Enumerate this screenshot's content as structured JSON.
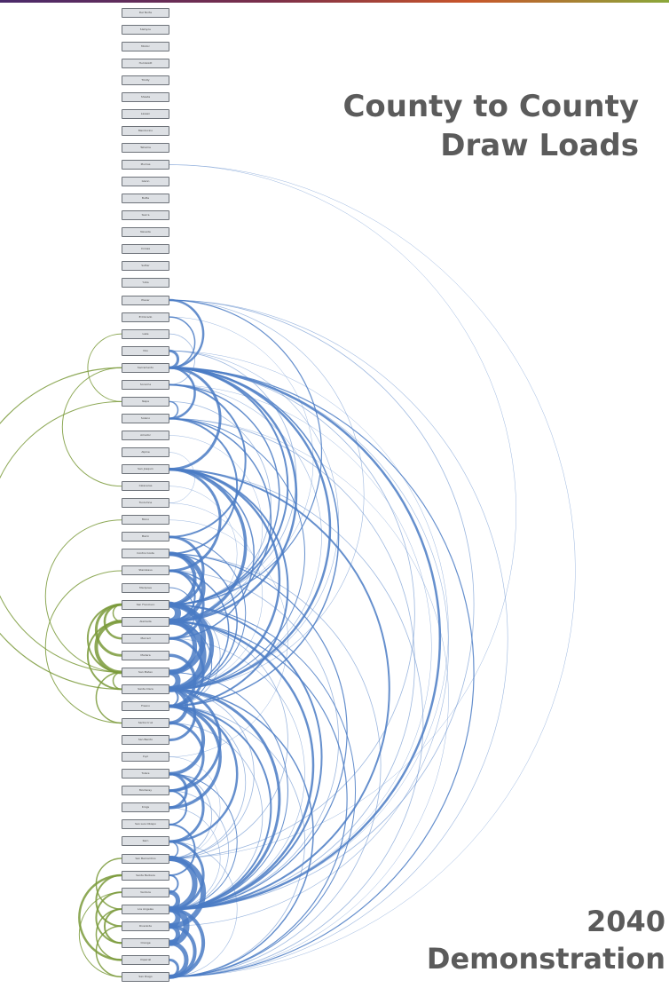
{
  "header": {
    "title_line1": "County to County",
    "title_line2": "Draw Loads"
  },
  "footer": {
    "subtitle_line1": "2040",
    "subtitle_line2": "Demonstration"
  },
  "colors": {
    "intra_region": "#4a7bc4",
    "cross_region": "#7a9a3a",
    "node_fill": "#dde0e4",
    "node_border": "#6d7279",
    "text": "#5b5b5b"
  },
  "counties": [
    "Del Norte",
    "Siskiyou",
    "Modoc",
    "Humboldt",
    "Trinity",
    "Shasta",
    "Lassen",
    "Mendocino",
    "Tehama",
    "Plumas",
    "Glenn",
    "Butte",
    "Sierra",
    "Nevada",
    "Colusa",
    "Sutter",
    "Yuba",
    "Placer",
    "El Dorado",
    "Lake",
    "Yolo",
    "Sacramento",
    "Sonoma",
    "Napa",
    "Solano",
    "Amador",
    "Alpine",
    "San Joaquin",
    "Calaveras",
    "Tuolumne",
    "Mono",
    "Marin",
    "Contra Costa",
    "Stanislaus",
    "Mariposa",
    "San Francisco",
    "Alameda",
    "Merced",
    "Madera",
    "San Mateo",
    "Santa Clara",
    "Fresno",
    "Santa Cruz",
    "San Benito",
    "Inyo",
    "Tulare",
    "Monterey",
    "Kings",
    "San Luis Obispo",
    "Kern",
    "San Bernardino",
    "Santa Barbara",
    "Ventura",
    "Los Angeles",
    "Riverside",
    "Orange",
    "Imperial",
    "San Diego"
  ],
  "links": [
    {
      "from": 9,
      "to": 57,
      "weight": 0.5
    },
    {
      "from": 9,
      "to": 50,
      "weight": 0.5
    },
    {
      "from": 17,
      "to": 21,
      "weight": 2.5
    },
    {
      "from": 17,
      "to": 35,
      "weight": 1.2
    },
    {
      "from": 17,
      "to": 53,
      "weight": 0.8
    },
    {
      "from": 17,
      "to": 57,
      "weight": 0.6
    },
    {
      "from": 18,
      "to": 21,
      "weight": 1.5
    },
    {
      "from": 20,
      "to": 21,
      "weight": 3
    },
    {
      "from": 20,
      "to": 35,
      "weight": 0.8
    },
    {
      "from": 21,
      "to": 24,
      "weight": 2.5
    },
    {
      "from": 21,
      "to": 27,
      "weight": 3
    },
    {
      "from": 21,
      "to": 35,
      "weight": 2
    },
    {
      "from": 21,
      "to": 36,
      "weight": 2.5
    },
    {
      "from": 21,
      "to": 40,
      "weight": 2.5
    },
    {
      "from": 21,
      "to": 41,
      "weight": 1.5
    },
    {
      "from": 21,
      "to": 53,
      "weight": 2.5
    },
    {
      "from": 21,
      "to": 57,
      "weight": 1.2
    },
    {
      "from": 22,
      "to": 31,
      "weight": 2
    },
    {
      "from": 22,
      "to": 35,
      "weight": 1.5
    },
    {
      "from": 24,
      "to": 32,
      "weight": 2
    },
    {
      "from": 24,
      "to": 36,
      "weight": 1.5
    },
    {
      "from": 27,
      "to": 33,
      "weight": 3
    },
    {
      "from": 27,
      "to": 36,
      "weight": 3.5
    },
    {
      "from": 27,
      "to": 40,
      "weight": 2.5
    },
    {
      "from": 27,
      "to": 53,
      "weight": 2
    },
    {
      "from": 27,
      "to": 41,
      "weight": 2
    },
    {
      "from": 31,
      "to": 35,
      "weight": 3
    },
    {
      "from": 32,
      "to": 36,
      "weight": 5
    },
    {
      "from": 32,
      "to": 35,
      "weight": 4
    },
    {
      "from": 33,
      "to": 37,
      "weight": 3
    },
    {
      "from": 33,
      "to": 36,
      "weight": 2
    },
    {
      "from": 33,
      "to": 40,
      "weight": 1.5
    },
    {
      "from": 35,
      "to": 36,
      "weight": 7
    },
    {
      "from": 35,
      "to": 39,
      "weight": 6
    },
    {
      "from": 35,
      "to": 40,
      "weight": 5
    },
    {
      "from": 35,
      "to": 53,
      "weight": 2
    },
    {
      "from": 36,
      "to": 40,
      "weight": 7
    },
    {
      "from": 36,
      "to": 39,
      "weight": 5
    },
    {
      "from": 36,
      "to": 53,
      "weight": 2.5
    },
    {
      "from": 36,
      "to": 57,
      "weight": 1.2
    },
    {
      "from": 37,
      "to": 41,
      "weight": 3
    },
    {
      "from": 38,
      "to": 41,
      "weight": 3.5
    },
    {
      "from": 39,
      "to": 40,
      "weight": 6
    },
    {
      "from": 40,
      "to": 42,
      "weight": 4
    },
    {
      "from": 40,
      "to": 43,
      "weight": 3
    },
    {
      "from": 40,
      "to": 46,
      "weight": 3
    },
    {
      "from": 40,
      "to": 41,
      "weight": 2
    },
    {
      "from": 40,
      "to": 53,
      "weight": 3
    },
    {
      "from": 40,
      "to": 57,
      "weight": 1.5
    },
    {
      "from": 41,
      "to": 45,
      "weight": 4
    },
    {
      "from": 41,
      "to": 47,
      "weight": 3.5
    },
    {
      "from": 41,
      "to": 49,
      "weight": 2.5
    },
    {
      "from": 41,
      "to": 53,
      "weight": 2
    },
    {
      "from": 42,
      "to": 46,
      "weight": 3
    },
    {
      "from": 45,
      "to": 47,
      "weight": 3
    },
    {
      "from": 45,
      "to": 49,
      "weight": 3
    },
    {
      "from": 46,
      "to": 48,
      "weight": 2
    },
    {
      "from": 48,
      "to": 51,
      "weight": 2
    },
    {
      "from": 49,
      "to": 53,
      "weight": 3
    },
    {
      "from": 50,
      "to": 53,
      "weight": 6
    },
    {
      "from": 50,
      "to": 54,
      "weight": 6
    },
    {
      "from": 51,
      "to": 52,
      "weight": 2
    },
    {
      "from": 52,
      "to": 53,
      "weight": 5
    },
    {
      "from": 53,
      "to": 55,
      "weight": 7
    },
    {
      "from": 53,
      "to": 54,
      "weight": 6
    },
    {
      "from": 53,
      "to": 57,
      "weight": 4
    },
    {
      "from": 54,
      "to": 55,
      "weight": 5
    },
    {
      "from": 54,
      "to": 57,
      "weight": 4
    },
    {
      "from": 55,
      "to": 57,
      "weight": 5
    },
    {
      "from": 56,
      "to": 57,
      "weight": 3
    },
    {
      "from": 17,
      "to": 40,
      "weight": 0.6
    },
    {
      "from": 20,
      "to": 53,
      "weight": 0.5
    },
    {
      "from": 22,
      "to": 53,
      "weight": 0.5
    },
    {
      "from": 24,
      "to": 53,
      "weight": 0.8
    },
    {
      "from": 24,
      "to": 57,
      "weight": 0.5
    },
    {
      "from": 27,
      "to": 57,
      "weight": 0.8
    },
    {
      "from": 32,
      "to": 53,
      "weight": 1.2
    },
    {
      "from": 32,
      "to": 57,
      "weight": 0.8
    },
    {
      "from": 33,
      "to": 53,
      "weight": 0.8
    },
    {
      "from": 35,
      "to": 57,
      "weight": 1
    },
    {
      "from": 37,
      "to": 53,
      "weight": 0.6
    },
    {
      "from": 39,
      "to": 53,
      "weight": 1
    },
    {
      "from": 41,
      "to": 57,
      "weight": 0.8
    },
    {
      "from": 42,
      "to": 53,
      "weight": 0.8
    },
    {
      "from": 45,
      "to": 53,
      "weight": 1
    },
    {
      "from": 46,
      "to": 53,
      "weight": 0.8
    },
    {
      "from": 47,
      "to": 53,
      "weight": 0.6
    },
    {
      "from": 18,
      "to": 35,
      "weight": 0.5
    },
    {
      "from": 23,
      "to": 35,
      "weight": 0.8
    },
    {
      "from": 25,
      "to": 36,
      "weight": 0.5
    },
    {
      "from": 28,
      "to": 36,
      "weight": 0.5
    },
    {
      "from": 29,
      "to": 40,
      "weight": 0.5
    },
    {
      "from": 19,
      "to": 22,
      "weight": 0.8
    },
    {
      "from": 23,
      "to": 24,
      "weight": 1.5
    },
    {
      "from": 34,
      "to": 37,
      "weight": 1
    },
    {
      "from": 44,
      "to": 50,
      "weight": 0.5
    },
    {
      "from": 30,
      "to": 44,
      "weight": 0.5
    },
    {
      "from": 26,
      "to": 29,
      "weight": 0.5
    },
    {
      "from": 20,
      "to": 40,
      "weight": 0.6
    },
    {
      "from": 22,
      "to": 40,
      "weight": 0.6
    },
    {
      "from": 32,
      "to": 40,
      "weight": 1.5
    },
    {
      "from": 31,
      "to": 40,
      "weight": 1
    },
    {
      "from": 24,
      "to": 40,
      "weight": 1
    },
    {
      "from": 21,
      "to": 50,
      "weight": 0.8
    },
    {
      "from": 21,
      "to": 54,
      "weight": 0.6
    },
    {
      "from": 36,
      "to": 50,
      "weight": 0.8
    },
    {
      "from": 40,
      "to": 50,
      "weight": 0.8
    },
    {
      "from": 41,
      "to": 50,
      "weight": 0.8
    },
    {
      "from": 45,
      "to": 50,
      "weight": 0.8
    },
    {
      "from": 49,
      "to": 50,
      "weight": 1.5
    },
    {
      "from": 49,
      "to": 57,
      "weight": 0.6
    },
    {
      "from": 35,
      "to": 41,
      "weight": 0.8
    },
    {
      "from": 36,
      "to": 41,
      "weight": 1
    },
    {
      "from": 27,
      "to": 37,
      "weight": 1.5
    }
  ],
  "cross_links": [
    {
      "from": 19,
      "to": 23,
      "weight": 1
    },
    {
      "from": 21,
      "to": 28,
      "weight": 1
    },
    {
      "from": 23,
      "to": 39,
      "weight": 1
    },
    {
      "from": 21,
      "to": 40,
      "weight": 1.2
    },
    {
      "from": 30,
      "to": 39,
      "weight": 1
    },
    {
      "from": 35,
      "to": 36,
      "weight": 1.5
    },
    {
      "from": 35,
      "to": 37,
      "weight": 2.5
    },
    {
      "from": 35,
      "to": 38,
      "weight": 3
    },
    {
      "from": 35,
      "to": 39,
      "weight": 2
    },
    {
      "from": 36,
      "to": 39,
      "weight": 4
    },
    {
      "from": 36,
      "to": 40,
      "weight": 2
    },
    {
      "from": 33,
      "to": 42,
      "weight": 1
    },
    {
      "from": 39,
      "to": 42,
      "weight": 1.5
    },
    {
      "from": 39,
      "to": 40,
      "weight": 1.5
    },
    {
      "from": 50,
      "to": 53,
      "weight": 1.5
    },
    {
      "from": 51,
      "to": 54,
      "weight": 2
    },
    {
      "from": 51,
      "to": 56,
      "weight": 2.5
    },
    {
      "from": 52,
      "to": 55,
      "weight": 2
    },
    {
      "from": 53,
      "to": 55,
      "weight": 2
    },
    {
      "from": 53,
      "to": 56,
      "weight": 1.5
    },
    {
      "from": 54,
      "to": 57,
      "weight": 1.5
    },
    {
      "from": 52,
      "to": 57,
      "weight": 1
    }
  ]
}
